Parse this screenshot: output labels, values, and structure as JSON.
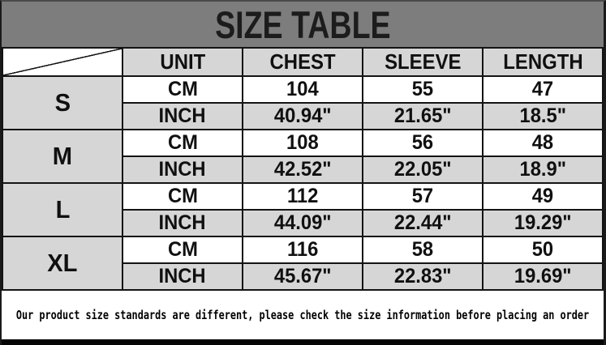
{
  "header": {
    "title": "SIZE TABLE"
  },
  "table": {
    "columns": [
      "UNIT",
      "CHEST",
      "SLEEVE",
      "LENGTH"
    ],
    "rows": [
      {
        "size": "S",
        "cm": {
          "label": "CM",
          "chest": "104",
          "sleeve": "55",
          "length": "47"
        },
        "inch": {
          "label": "INCH",
          "chest": "40.94\"",
          "sleeve": "21.65\"",
          "length": "18.5\""
        }
      },
      {
        "size": "M",
        "cm": {
          "label": "CM",
          "chest": "108",
          "sleeve": "56",
          "length": "48"
        },
        "inch": {
          "label": "INCH",
          "chest": "42.52\"",
          "sleeve": "22.05\"",
          "length": "18.9\""
        }
      },
      {
        "size": "L",
        "cm": {
          "label": "CM",
          "chest": "112",
          "sleeve": "57",
          "length": "49"
        },
        "inch": {
          "label": "INCH",
          "chest": "44.09\"",
          "sleeve": "22.44\"",
          "length": "19.29\""
        }
      },
      {
        "size": "XL",
        "cm": {
          "label": "CM",
          "chest": "116",
          "sleeve": "58",
          "length": "50"
        },
        "inch": {
          "label": "INCH",
          "chest": "45.67\"",
          "sleeve": "22.83\"",
          "length": "19.69\""
        }
      }
    ]
  },
  "note": {
    "text": "Our product size standards are different, please check the size information before placing an order"
  },
  "colors": {
    "title_bar_bg": "#7d7d7d",
    "title_text": "#1c1c1c",
    "row_shaded_bg": "#d6d6d6",
    "row_plain_bg": "#ffffff",
    "border": "#141414",
    "bottom_bar": "#050505"
  }
}
